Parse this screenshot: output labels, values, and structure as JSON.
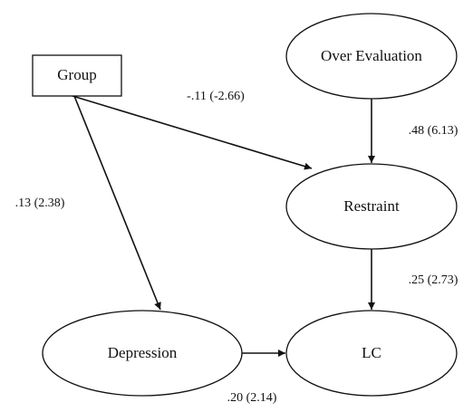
{
  "nodes": [
    {
      "label": "Group"
    },
    {
      "label": "Over Evaluation"
    },
    {
      "label": "Restraint"
    },
    {
      "label": "Depression"
    },
    {
      "label": "LC"
    }
  ],
  "edges": [
    {
      "label": "-.11 (-2.66)"
    },
    {
      "label": ".48 (6.13)"
    },
    {
      "label": ".13 (2.38)"
    },
    {
      "label": ".25 (2.73)"
    },
    {
      "label": ".20 (2.14)"
    }
  ]
}
